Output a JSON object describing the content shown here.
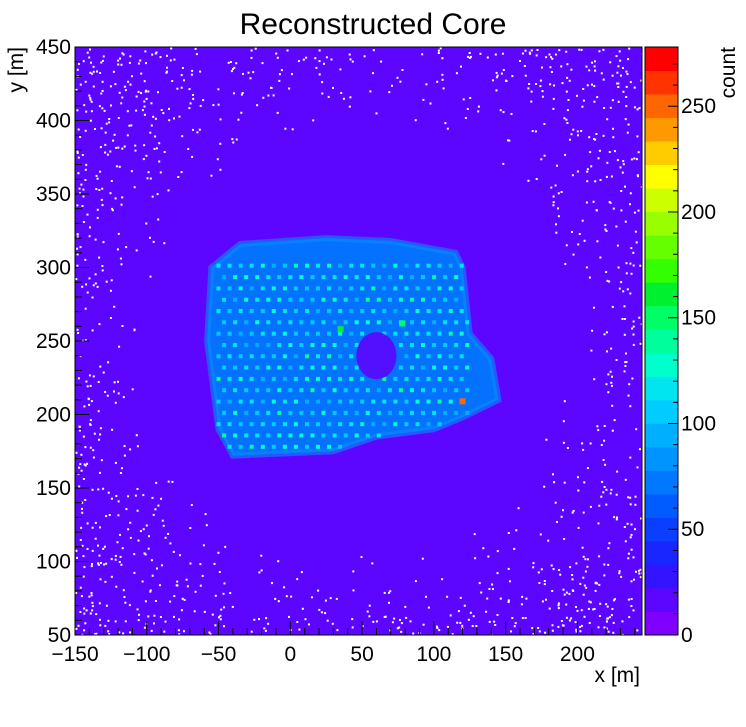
{
  "chart_data": {
    "type": "heatmap",
    "title": "Reconstructed Core",
    "xlabel": "x [m]",
    "ylabel": "y [m]",
    "zlabel": "count",
    "xlim": [
      -150,
      245
    ],
    "ylim": [
      50,
      450
    ],
    "zlim": [
      0,
      278
    ],
    "x_ticks": [
      -150,
      -100,
      -50,
      0,
      50,
      100,
      150,
      200
    ],
    "y_ticks": [
      50,
      100,
      150,
      200,
      250,
      300,
      350,
      400,
      450
    ],
    "z_ticks": [
      0,
      50,
      100,
      150,
      200,
      250
    ],
    "background_level": 20,
    "array_region": {
      "polygon": [
        [
          -55,
          300
        ],
        [
          -35,
          316
        ],
        [
          25,
          320
        ],
        [
          70,
          318
        ],
        [
          115,
          310
        ],
        [
          120,
          300
        ],
        [
          125,
          255
        ],
        [
          140,
          238
        ],
        [
          145,
          210
        ],
        [
          120,
          198
        ],
        [
          100,
          190
        ],
        [
          60,
          185
        ],
        [
          30,
          175
        ],
        [
          -40,
          172
        ],
        [
          -50,
          190
        ],
        [
          -58,
          250
        ]
      ],
      "level": 70
    },
    "central_hole": {
      "center": [
        60,
        240
      ],
      "radius_x": 14,
      "radius_y": 16
    },
    "detector_grid": {
      "x_start": -50,
      "x_end": 125,
      "x_spacing": 7.7,
      "y_start": 178,
      "y_end": 306,
      "y_spacing": 7.7,
      "level": 115
    },
    "hot_spots": [
      {
        "x": 120,
        "y": 209,
        "value": 255
      },
      {
        "x": 35,
        "y": 258,
        "value": 160
      },
      {
        "x": 78,
        "y": 262,
        "value": 150
      }
    ],
    "palette": [
      "#7f00ff",
      "#5c06ff",
      "#3413ff",
      "#1a26ff",
      "#0a3fff",
      "#005cff",
      "#0078ff",
      "#0094ff",
      "#00b0ff",
      "#00ccff",
      "#00e5f0",
      "#00ffcc",
      "#00ff9c",
      "#00ff66",
      "#00f030",
      "#33ff00",
      "#66ff00",
      "#99ff00",
      "#ccff00",
      "#ffff00",
      "#ffcc00",
      "#ff9900",
      "#ff6600",
      "#ff3300",
      "#ff0000"
    ]
  }
}
